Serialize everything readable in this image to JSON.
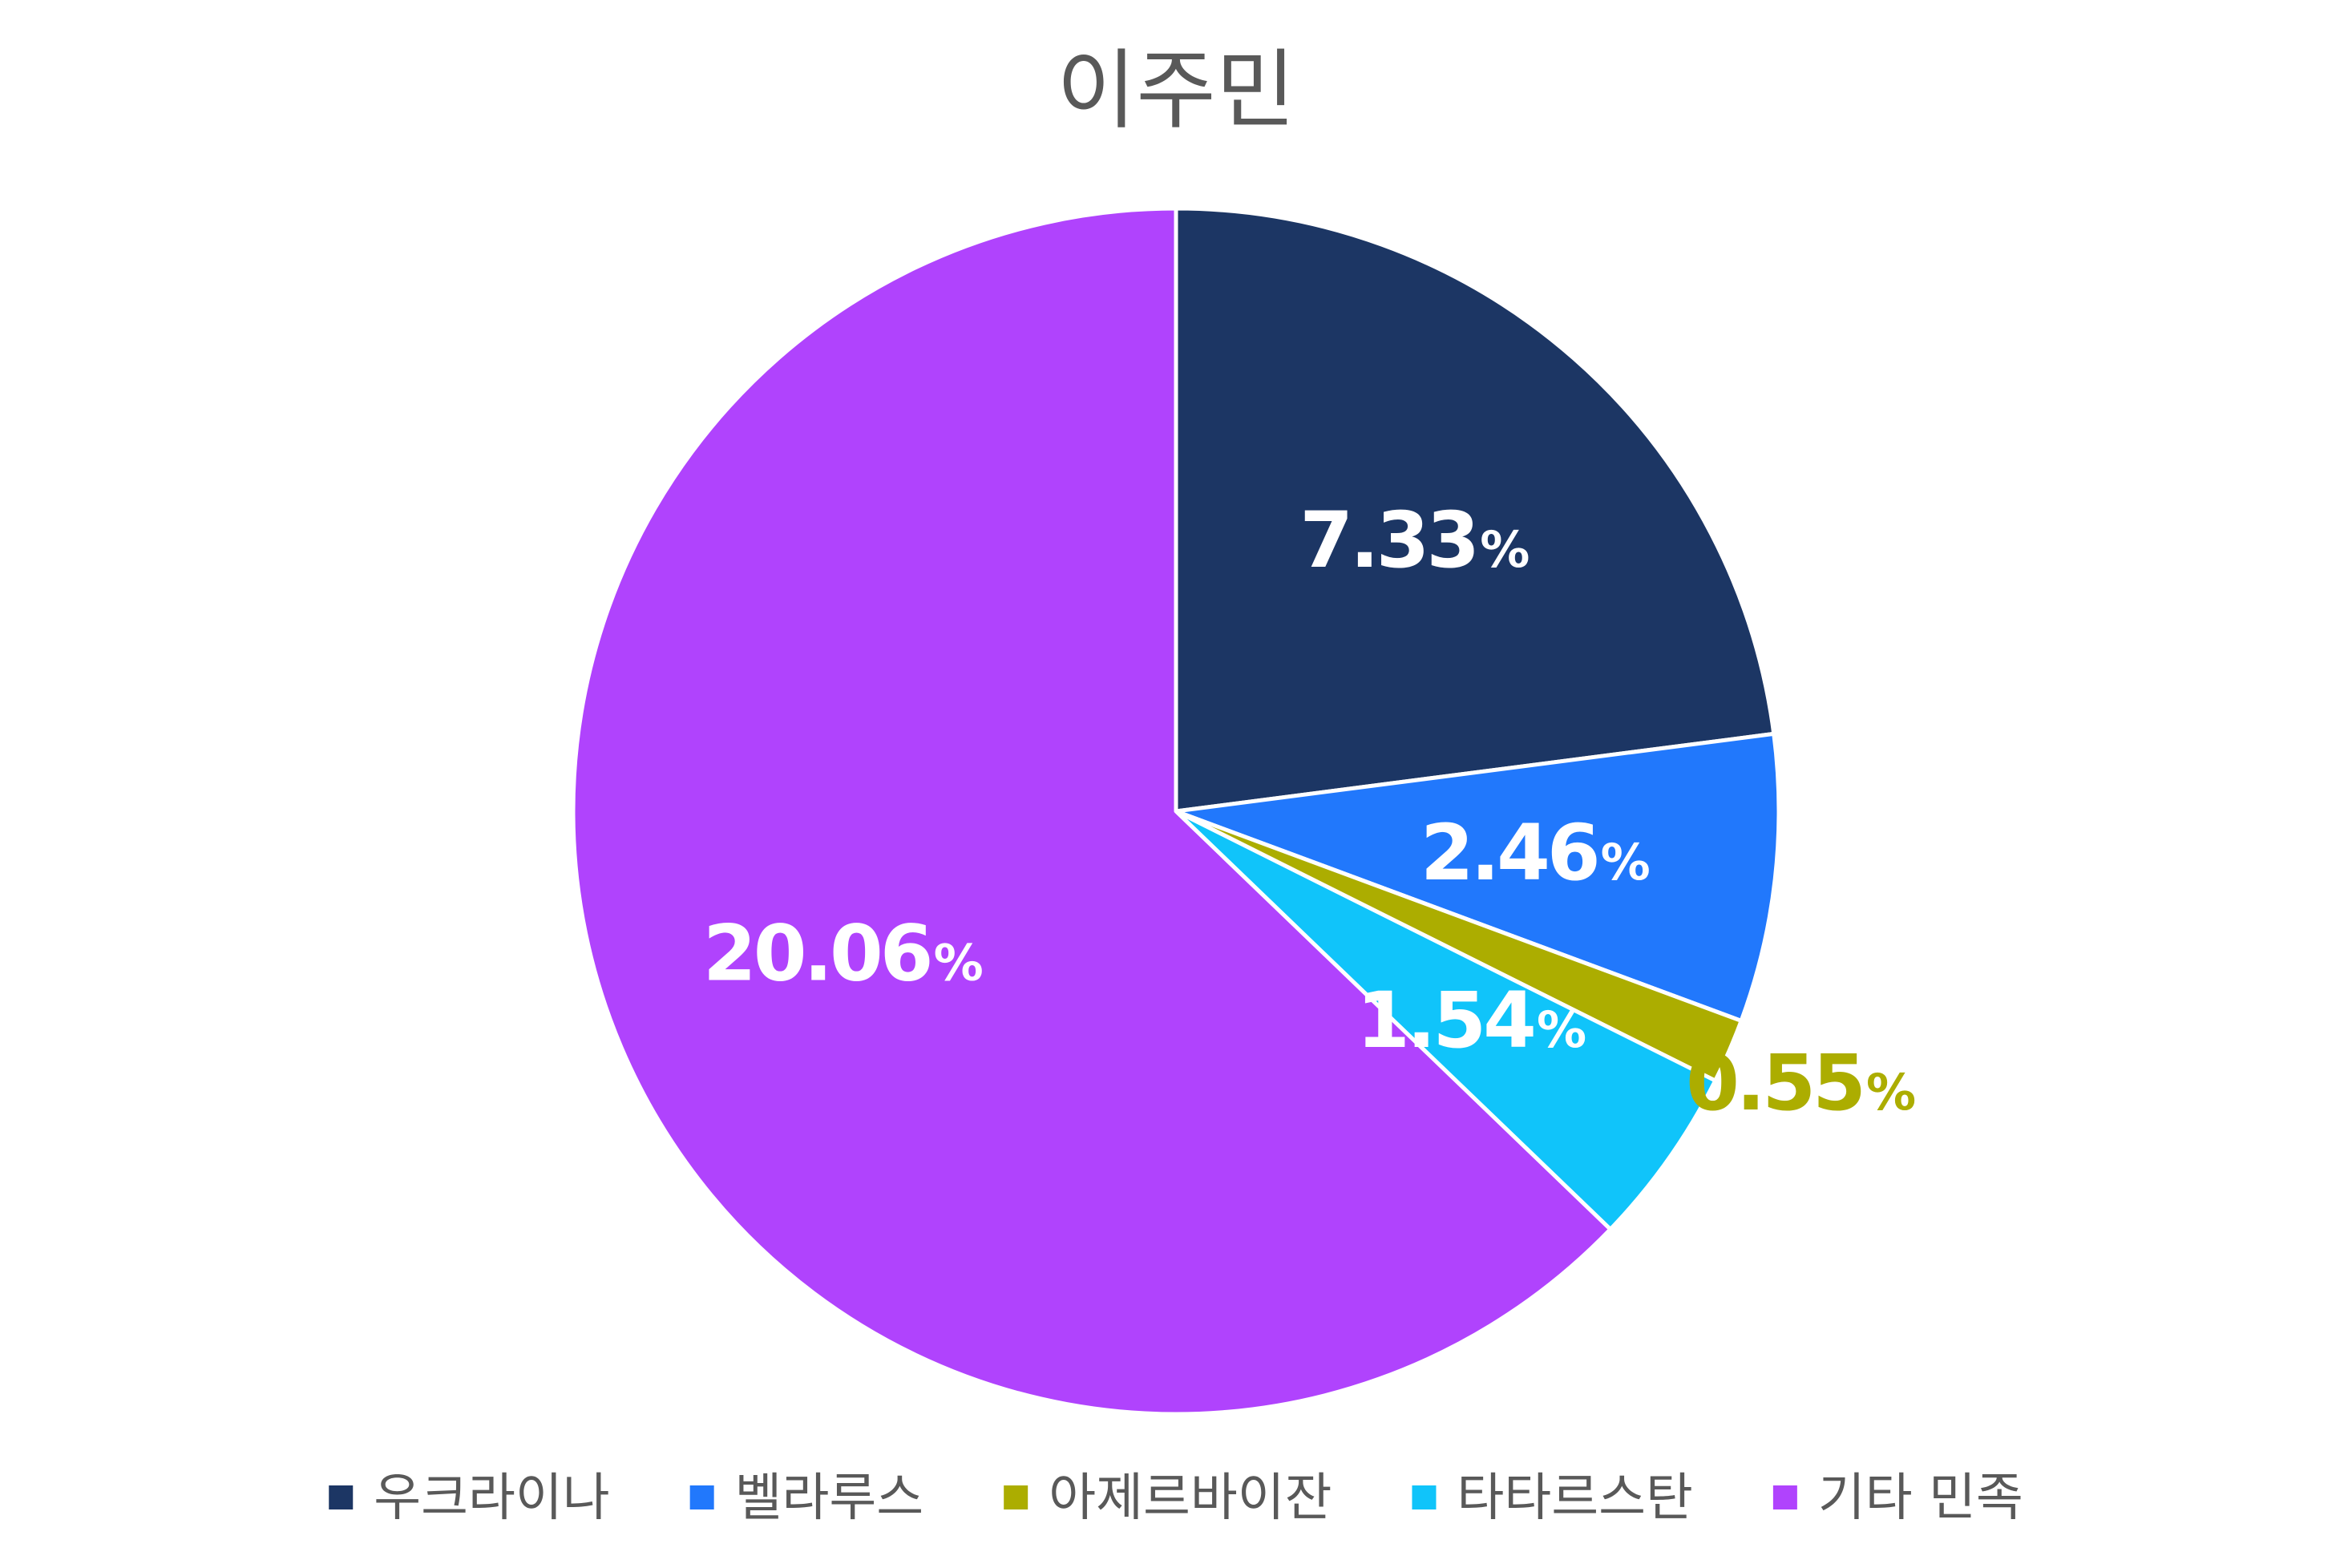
{
  "chart_data": {
    "type": "pie",
    "title": "이주민",
    "start_angle_deg": 0,
    "direction": "clockwise",
    "legend_position": "bottom",
    "slices": [
      {
        "name": "우크라이나",
        "value": 7.33,
        "label": "7.33",
        "unit": "%",
        "color": "#1c3664",
        "label_color": "#ffffff",
        "label_placement": "inside"
      },
      {
        "name": "벨라루스",
        "value": 2.46,
        "label": "2.46",
        "unit": "%",
        "color": "#2178fc",
        "label_color": "#ffffff",
        "label_placement": "inside"
      },
      {
        "name": "아제르바이잔",
        "value": 0.55,
        "label": "0.55",
        "unit": "%",
        "color": "#acad00",
        "label_color": "#acad00",
        "label_placement": "outside"
      },
      {
        "name": "타타르스탄",
        "value": 1.54,
        "label": "1.54",
        "unit": "%",
        "color": "#10c4fa",
        "label_color": "#ffffff",
        "label_placement": "inside"
      },
      {
        "name": "기타 민족",
        "value": 20.06,
        "label": "20.06",
        "unit": "%",
        "color": "#b043fd",
        "label_color": "#ffffff",
        "label_placement": "inside"
      }
    ]
  }
}
